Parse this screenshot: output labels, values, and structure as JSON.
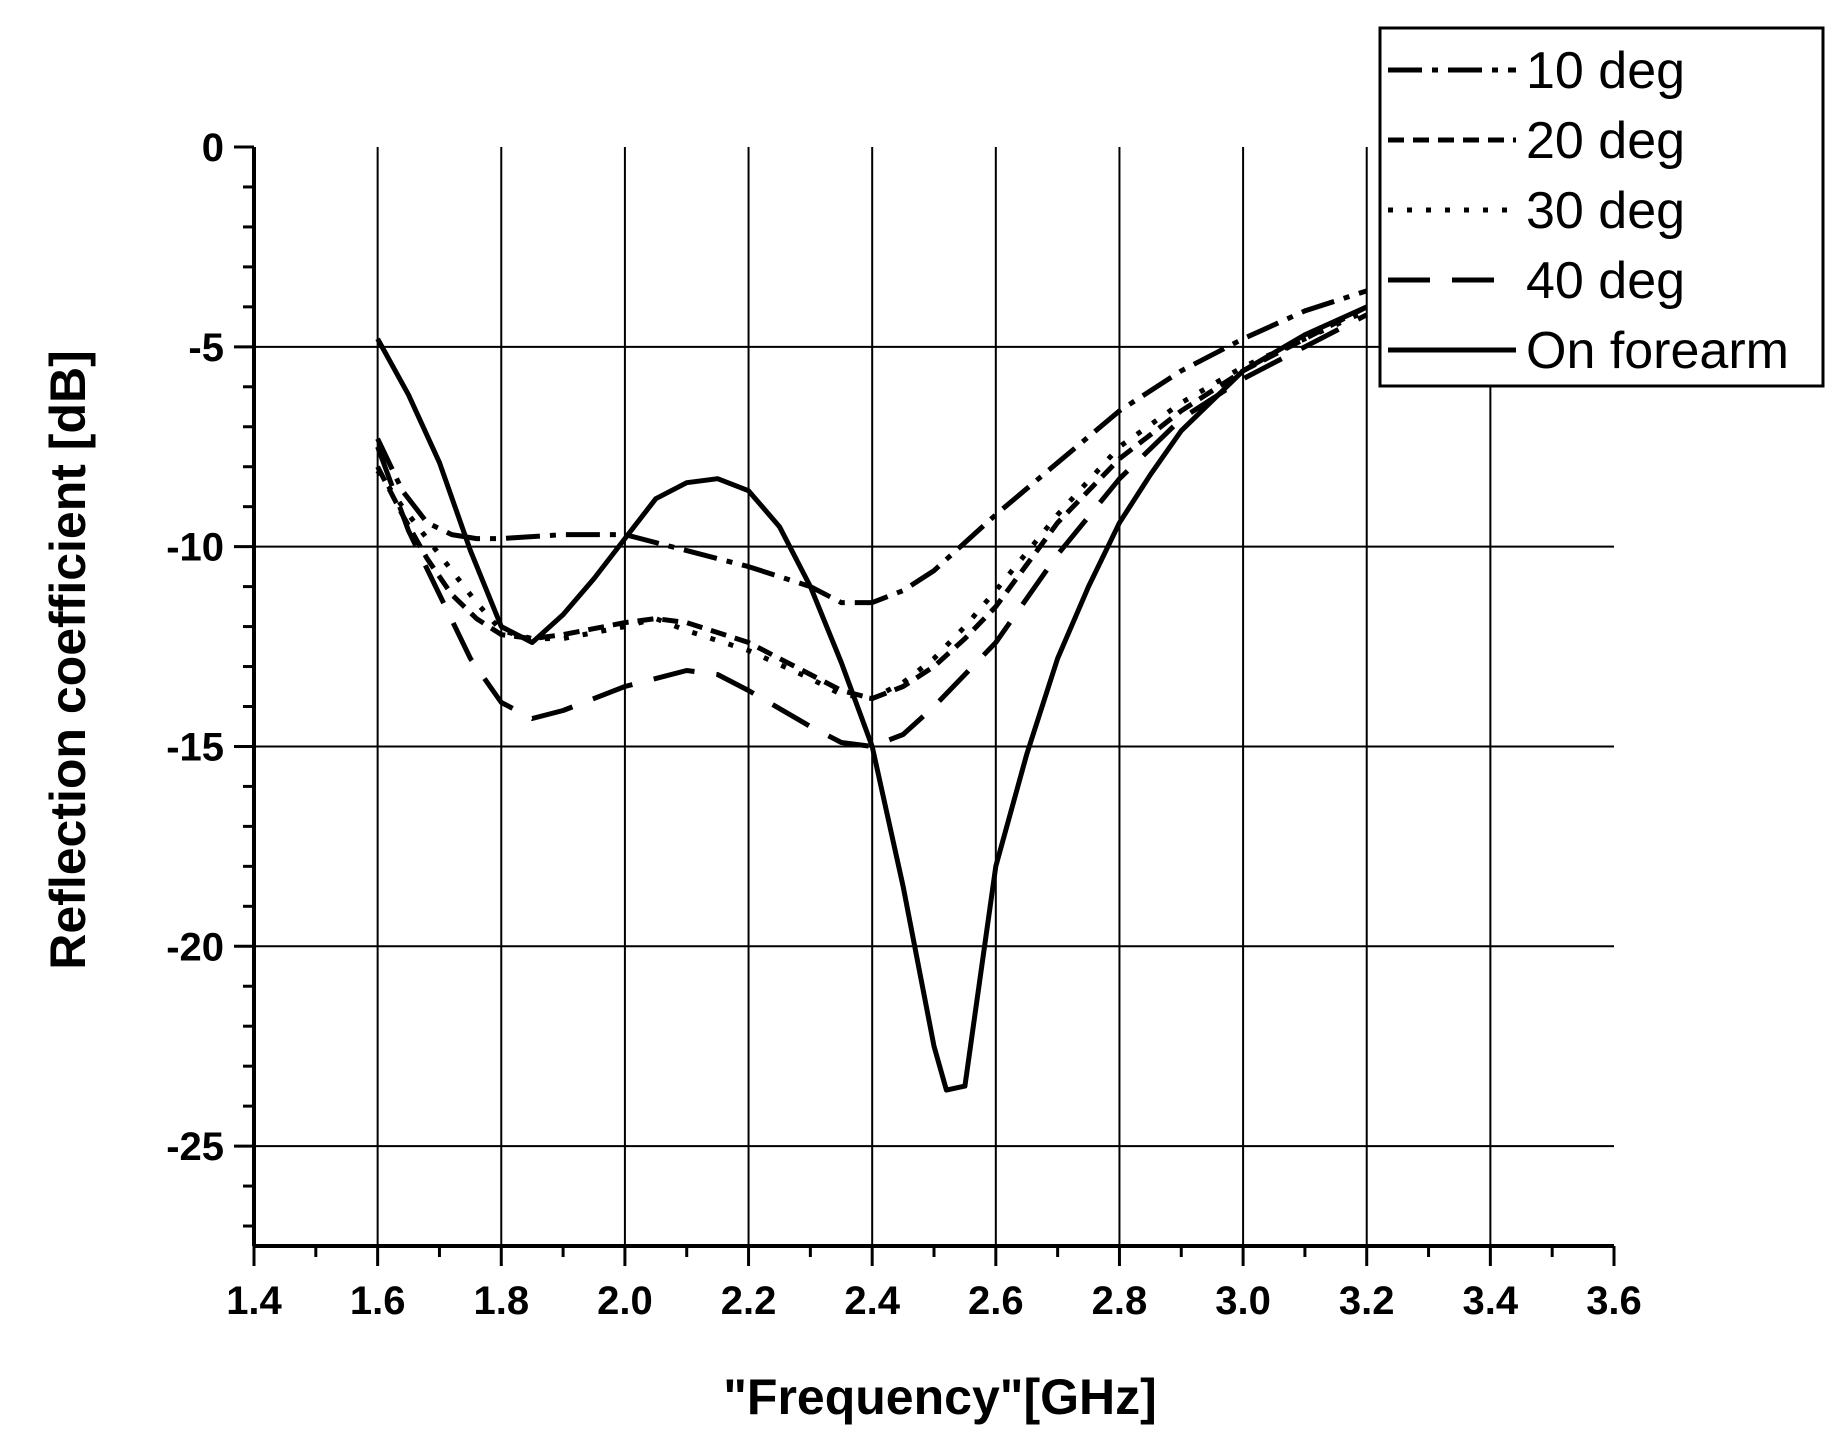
{
  "chart_data": {
    "type": "line",
    "title": "",
    "xlabel": "\"Frequency\"[GHz]",
    "ylabel": "Reflection coefficient [dB]",
    "xlim": [
      1.4,
      3.6
    ],
    "ylim": [
      -27.5,
      0
    ],
    "xticks": [
      1.4,
      1.6,
      1.8,
      2.0,
      2.2,
      2.4,
      2.6,
      2.8,
      3.0,
      3.2,
      3.4,
      3.6
    ],
    "xtick_labels": [
      "1.4",
      "1.6",
      "1.8",
      "2.0",
      "2.2",
      "2.4",
      "2.6",
      "2.8",
      "3.0",
      "3.2",
      "3.4",
      "3.6"
    ],
    "yticks": [
      0,
      -5,
      -10,
      -15,
      -20,
      -25
    ],
    "ytick_labels": [
      "0",
      "-5",
      "-10",
      "-15",
      "-20",
      "-25"
    ],
    "grid": true,
    "legend_position": "top-right",
    "series": [
      {
        "name": "10 deg",
        "style": "dash-dot",
        "x": [
          1.6,
          1.64,
          1.68,
          1.72,
          1.76,
          1.8,
          1.9,
          2.0,
          2.1,
          2.2,
          2.3,
          2.35,
          2.4,
          2.45,
          2.5,
          2.55,
          2.6,
          2.7,
          2.8,
          2.9,
          3.0,
          3.1,
          3.2
        ],
        "y": [
          -7.3,
          -8.6,
          -9.4,
          -9.7,
          -9.8,
          -9.8,
          -9.7,
          -9.7,
          -10.1,
          -10.5,
          -11.0,
          -11.4,
          -11.4,
          -11.1,
          -10.6,
          -9.9,
          -9.2,
          -7.9,
          -6.6,
          -5.6,
          -4.8,
          -4.1,
          -3.6
        ]
      },
      {
        "name": "20 deg",
        "style": "short-dash",
        "x": [
          1.6,
          1.64,
          1.68,
          1.72,
          1.76,
          1.8,
          1.85,
          1.9,
          2.0,
          2.05,
          2.1,
          2.2,
          2.3,
          2.35,
          2.4,
          2.45,
          2.5,
          2.55,
          2.6,
          2.7,
          2.8,
          2.9,
          3.0,
          3.1,
          3.2
        ],
        "y": [
          -8.0,
          -9.2,
          -10.3,
          -11.2,
          -11.8,
          -12.2,
          -12.3,
          -12.2,
          -11.9,
          -11.8,
          -11.9,
          -12.4,
          -13.2,
          -13.6,
          -13.8,
          -13.5,
          -13.0,
          -12.3,
          -11.5,
          -9.4,
          -7.8,
          -6.6,
          -5.6,
          -4.8,
          -4.0
        ]
      },
      {
        "name": "30 deg",
        "style": "dotted",
        "x": [
          1.6,
          1.64,
          1.68,
          1.72,
          1.76,
          1.8,
          1.85,
          1.9,
          2.0,
          2.05,
          2.1,
          2.2,
          2.3,
          2.35,
          2.4,
          2.45,
          2.5,
          2.55,
          2.6,
          2.7,
          2.8,
          2.9,
          3.0,
          3.1,
          3.2
        ],
        "y": [
          -8.1,
          -9.0,
          -9.8,
          -10.6,
          -11.4,
          -12.1,
          -12.3,
          -12.3,
          -12.0,
          -11.8,
          -12.1,
          -12.6,
          -13.3,
          -13.7,
          -13.8,
          -13.4,
          -12.8,
          -12.0,
          -11.1,
          -9.2,
          -7.5,
          -6.4,
          -5.5,
          -4.8,
          -4.1
        ]
      },
      {
        "name": "40 deg",
        "style": "long-dash",
        "x": [
          1.6,
          1.65,
          1.7,
          1.75,
          1.8,
          1.85,
          1.9,
          2.0,
          2.1,
          2.15,
          2.2,
          2.3,
          2.35,
          2.4,
          2.45,
          2.5,
          2.55,
          2.6,
          2.7,
          2.8,
          2.9,
          3.0,
          3.1,
          3.2
        ],
        "y": [
          -7.5,
          -9.6,
          -11.2,
          -12.8,
          -13.9,
          -14.3,
          -14.1,
          -13.5,
          -13.1,
          -13.2,
          -13.6,
          -14.5,
          -14.9,
          -15.0,
          -14.7,
          -14.0,
          -13.2,
          -12.4,
          -10.2,
          -8.3,
          -6.8,
          -5.8,
          -5.0,
          -4.2
        ]
      },
      {
        "name": "On forearm",
        "style": "solid",
        "x": [
          1.6,
          1.65,
          1.7,
          1.75,
          1.8,
          1.85,
          1.9,
          1.95,
          2.0,
          2.05,
          2.1,
          2.15,
          2.2,
          2.25,
          2.3,
          2.35,
          2.4,
          2.45,
          2.5,
          2.52,
          2.55,
          2.6,
          2.65,
          2.7,
          2.75,
          2.8,
          2.85,
          2.9,
          3.0,
          3.1,
          3.2
        ],
        "y": [
          -4.8,
          -6.2,
          -7.9,
          -10.1,
          -12.0,
          -12.4,
          -11.7,
          -10.8,
          -9.8,
          -8.8,
          -8.4,
          -8.3,
          -8.6,
          -9.5,
          -11.0,
          -12.9,
          -15.0,
          -18.5,
          -22.5,
          -23.6,
          -23.5,
          -18.0,
          -15.2,
          -12.8,
          -11.0,
          -9.4,
          -8.2,
          -7.1,
          -5.6,
          -4.7,
          -4.0
        ]
      }
    ]
  }
}
